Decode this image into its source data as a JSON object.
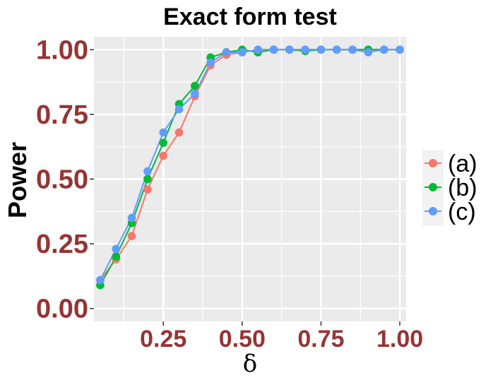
{
  "chart_data": {
    "type": "line",
    "title": "Exact form test",
    "xlabel": "δ",
    "ylabel": "Power",
    "xlim": [
      0.03,
      1.02
    ],
    "ylim": [
      -0.05,
      1.05
    ],
    "x_ticks": [
      0.25,
      0.5,
      0.75,
      1.0
    ],
    "x_tick_labels": [
      "0.25",
      "0.50",
      "0.75",
      "1.00"
    ],
    "y_ticks": [
      0.0,
      0.25,
      0.5,
      0.75,
      1.0
    ],
    "y_tick_labels": [
      "0.00",
      "0.25",
      "0.50",
      "0.75",
      "1.00"
    ],
    "tick_label_color": "#943634",
    "panel_background": "#ebebeb",
    "grid": true,
    "legend_position": "right",
    "x": [
      0.05,
      0.1,
      0.15,
      0.2,
      0.25,
      0.3,
      0.35,
      0.4,
      0.45,
      0.5,
      0.55,
      0.6,
      0.65,
      0.7,
      0.75,
      0.8,
      0.85,
      0.9,
      0.95,
      1.0
    ],
    "series": [
      {
        "name": "(a)",
        "color": "#f8766d",
        "values": [
          0.11,
          0.19,
          0.28,
          0.46,
          0.59,
          0.68,
          0.82,
          0.94,
          0.98,
          0.99,
          1.0,
          1.0,
          1.0,
          1.0,
          1.0,
          1.0,
          1.0,
          1.0,
          1.0,
          1.0
        ]
      },
      {
        "name": "(b)",
        "color": "#00ba38",
        "values": [
          0.09,
          0.2,
          0.33,
          0.5,
          0.64,
          0.79,
          0.86,
          0.97,
          0.99,
          1.0,
          0.99,
          1.0,
          1.0,
          0.995,
          1.0,
          1.0,
          1.0,
          1.0,
          1.0,
          1.0
        ]
      },
      {
        "name": "(c)",
        "color": "#619cff",
        "values": [
          0.11,
          0.23,
          0.35,
          0.53,
          0.68,
          0.77,
          0.83,
          0.95,
          0.99,
          0.99,
          1.0,
          1.0,
          1.0,
          1.0,
          1.0,
          1.0,
          1.0,
          0.99,
          1.0,
          1.0
        ]
      }
    ]
  }
}
